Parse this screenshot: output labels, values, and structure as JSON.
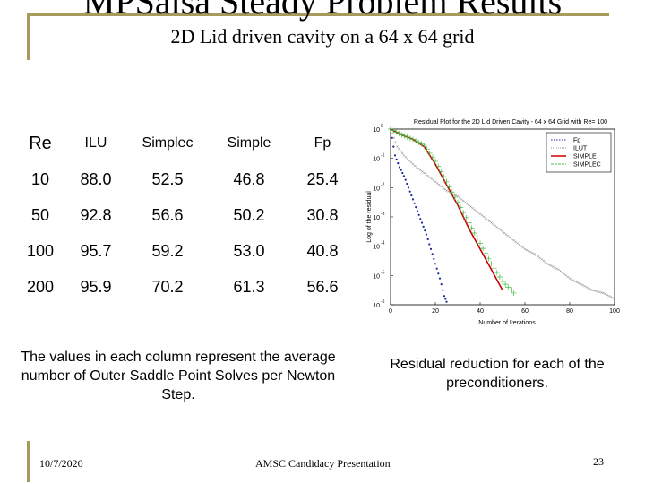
{
  "slide": {
    "title": "MPSalsa Steady Problem Results",
    "subtitle": "2D Lid driven cavity on a 64 x 64 grid"
  },
  "table": {
    "headers": [
      "Re",
      "ILU",
      "Simplec",
      "Simple",
      "Fp"
    ],
    "rows": [
      [
        "10",
        "88.0",
        "52.5",
        "46.8",
        "25.4"
      ],
      [
        "50",
        "92.8",
        "56.6",
        "50.2",
        "30.8"
      ],
      [
        "100",
        "95.7",
        "59.2",
        "53.0",
        "40.8"
      ],
      [
        "200",
        "95.9",
        "70.2",
        "61.3",
        "56.6"
      ]
    ]
  },
  "captions": {
    "left": "The values in each column represent the average number of Outer Saddle Point Solves per Newton Step.",
    "right": "Residual reduction for each of the preconditioners."
  },
  "footer": {
    "date": "10/7/2020",
    "center": "AMSC Candidacy Presentation",
    "page": "23"
  },
  "chart_data": {
    "type": "line",
    "title": "Residual Plot for the 2D Lid Driven Cavity - 64 x 64 Grid with Re= 100",
    "xlabel": "Number of Iterations",
    "ylabel": "Log of the residual",
    "xlim": [
      0,
      100
    ],
    "ylim_exp": [
      -6,
      0
    ],
    "y_scale": "log",
    "x_ticks": [
      "0",
      "20",
      "40",
      "60",
      "80",
      "100"
    ],
    "y_ticks": [
      {
        "base": "10",
        "exp": "0"
      },
      {
        "base": "10",
        "exp": "-1"
      },
      {
        "base": "10",
        "exp": "-2"
      },
      {
        "base": "10",
        "exp": "-3"
      },
      {
        "base": "10",
        "exp": "-4"
      },
      {
        "base": "10",
        "exp": "-5"
      },
      {
        "base": "10",
        "exp": "-6"
      }
    ],
    "legend_position": "top-right",
    "series": [
      {
        "name": "Fp",
        "color": "#1a2a9a",
        "style": "dots",
        "x": [
          0,
          2,
          4,
          6,
          8,
          10,
          12,
          14,
          16,
          18,
          20,
          22,
          24,
          25
        ],
        "y": [
          0,
          -0.9,
          -1.3,
          -1.6,
          -2.0,
          -2.4,
          -2.8,
          -3.2,
          -3.6,
          -4.1,
          -4.6,
          -5.1,
          -5.7,
          -5.9
        ]
      },
      {
        "name": "ILUT",
        "color": "#777777",
        "style": "x",
        "x": [
          0,
          3,
          6,
          10,
          15,
          20,
          25,
          30,
          35,
          40,
          45,
          50,
          55,
          60,
          65,
          70,
          75,
          80,
          85,
          90,
          95,
          100
        ],
        "y": [
          0,
          -0.6,
          -0.9,
          -1.2,
          -1.5,
          -1.8,
          -2.1,
          -2.3,
          -2.6,
          -2.9,
          -3.2,
          -3.5,
          -3.8,
          -4.1,
          -4.3,
          -4.6,
          -4.8,
          -5.1,
          -5.3,
          -5.5,
          -5.6,
          -5.8
        ]
      },
      {
        "name": "SIMPLE",
        "color": "#cc0000",
        "style": "line",
        "x": [
          0,
          5,
          10,
          15,
          20,
          25,
          30,
          35,
          40,
          45,
          50
        ],
        "y": [
          0,
          -0.2,
          -0.35,
          -0.6,
          -1.2,
          -1.9,
          -2.6,
          -3.4,
          -4.1,
          -4.8,
          -5.5
        ]
      },
      {
        "name": "SIMPLEC",
        "color": "#44bb44",
        "style": "plus",
        "x": [
          0,
          5,
          10,
          15,
          20,
          25,
          30,
          35,
          40,
          45,
          50,
          55
        ],
        "y": [
          0,
          -0.2,
          -0.35,
          -0.55,
          -1.1,
          -1.8,
          -2.5,
          -3.2,
          -3.9,
          -4.6,
          -5.2,
          -5.6
        ]
      }
    ]
  }
}
